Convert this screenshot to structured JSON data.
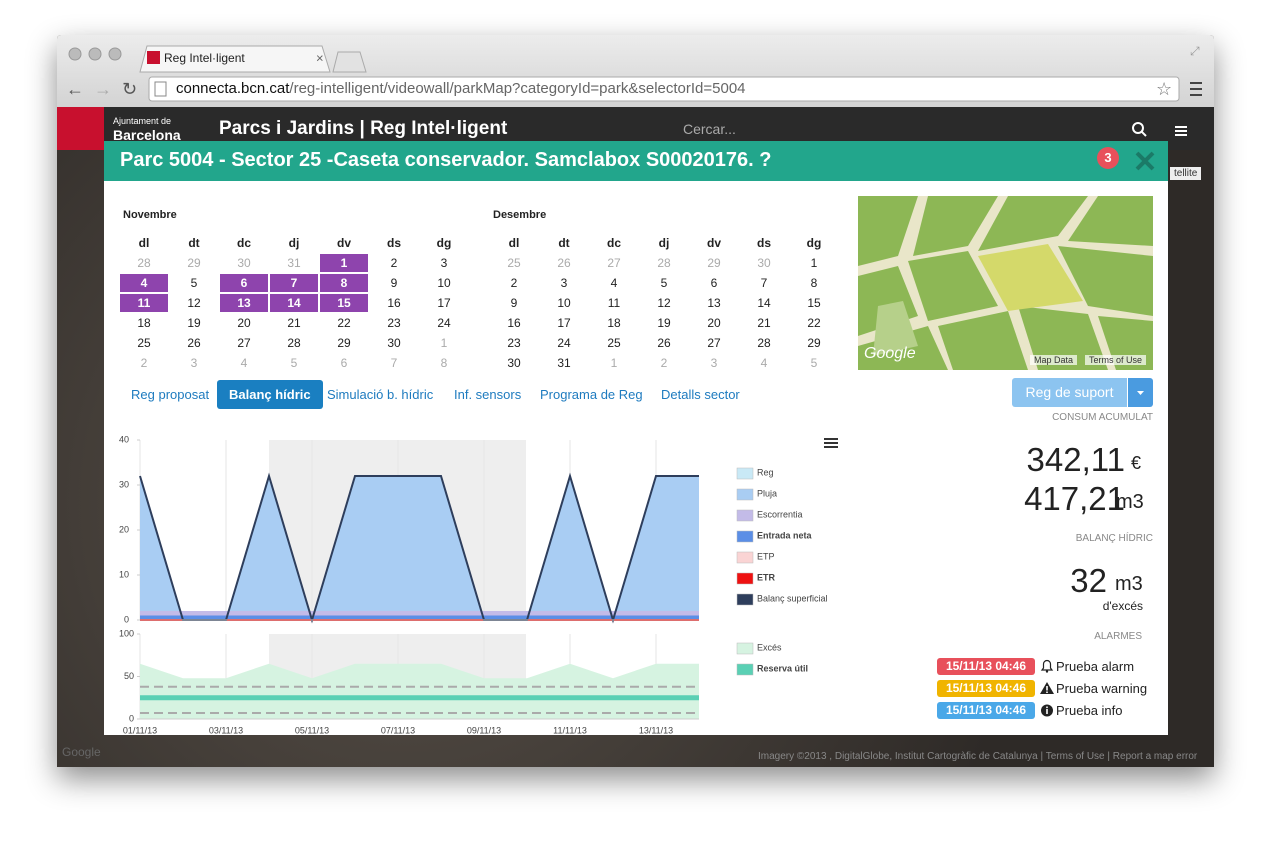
{
  "browser": {
    "tab_title": "Reg Intel·ligent",
    "url_host": "connecta.bcn.cat",
    "url_path": "/reg-intelligent/videowall/parkMap?categoryId=park&selectorId=5004"
  },
  "header": {
    "logo_line1": "Ajuntament de",
    "logo_line2": "Barcelona",
    "title": "Parcs i Jardins | Reg Intel·ligent",
    "search_placeholder": "Cercar..."
  },
  "map_background": {
    "satellite": "tellite",
    "google": "Google",
    "attribution": "Imagery ©2013 , DigitalGlobe, Institut Cartogràfic de Catalunya",
    "terms": "Terms of Use",
    "report": "Report a map error"
  },
  "modal": {
    "title": "Parc 5004 - Sector 25 -Caseta conservador. Samclabox S00020176. ?",
    "badge": "3"
  },
  "calendars": [
    {
      "month": "Novembre",
      "weekdays": [
        "dl",
        "dt",
        "dc",
        "dj",
        "dv",
        "ds",
        "dg"
      ],
      "weeks": [
        [
          28,
          29,
          30,
          31,
          1,
          2,
          3
        ],
        [
          4,
          5,
          6,
          7,
          8,
          9,
          10
        ],
        [
          11,
          12,
          13,
          14,
          15,
          16,
          17
        ],
        [
          18,
          19,
          20,
          21,
          22,
          23,
          24
        ],
        [
          25,
          26,
          27,
          28,
          29,
          30,
          1
        ],
        [
          2,
          3,
          4,
          5,
          6,
          7,
          8
        ]
      ],
      "selected": [
        1,
        4,
        6,
        7,
        8,
        11,
        13,
        14,
        15
      ]
    },
    {
      "month": "Desembre",
      "weekdays": [
        "dl",
        "dt",
        "dc",
        "dj",
        "dv",
        "ds",
        "dg"
      ],
      "weeks": [
        [
          25,
          26,
          27,
          28,
          29,
          30,
          1
        ],
        [
          2,
          3,
          4,
          5,
          6,
          7,
          8
        ],
        [
          9,
          10,
          11,
          12,
          13,
          14,
          15
        ],
        [
          16,
          17,
          18,
          19,
          20,
          21,
          22
        ],
        [
          23,
          24,
          25,
          26,
          27,
          28,
          29
        ],
        [
          30,
          31,
          1,
          2,
          3,
          4,
          5
        ]
      ]
    }
  ],
  "mini_map": {
    "logo": "Google",
    "map_data": "Map Data",
    "terms": "Terms of Use"
  },
  "tabs": {
    "items": [
      "Reg proposat",
      "Balanç hídric",
      "Simulació b. hídric",
      "Inf. sensors",
      "Programa de Reg",
      "Detalls sector"
    ],
    "active": 1
  },
  "support_button": "Reg de suport",
  "summary": {
    "consum_label": "CONSUM ACUMULAT",
    "cost": "342,11",
    "cost_unit": "€",
    "volume": "417,21",
    "volume_unit": "m3",
    "balance_label": "BALANÇ HÍDRIC",
    "balance": "32",
    "balance_unit": "m3",
    "balance_note": "d'excés",
    "alarms_label": "ALARMES"
  },
  "alarms": [
    {
      "time": "15/11/13 04:46",
      "text": "Prueba alarm",
      "color": "#e8505b"
    },
    {
      "time": "15/11/13 04:46",
      "text": "Prueba warning",
      "color": "#f0b400"
    },
    {
      "time": "15/11/13 04:46",
      "text": "Prueba info",
      "color": "#4aa8e8"
    }
  ],
  "chart_data": [
    {
      "type": "area",
      "ylim": [
        0,
        40
      ],
      "yticks": [
        0,
        10,
        20,
        30,
        40
      ],
      "series": [
        {
          "name": "Reg",
          "color": "#c9e9f6",
          "kind": "area",
          "values": [
            0,
            0,
            0,
            0,
            0,
            0,
            0,
            0,
            0,
            0,
            0,
            0,
            0,
            0
          ]
        },
        {
          "name": "Pluja",
          "color": "#a9cdf3",
          "kind": "area",
          "values": [
            32,
            0,
            0,
            32,
            0,
            32,
            32,
            32,
            0,
            0,
            32,
            0,
            32,
            32
          ]
        },
        {
          "name": "Escorrentia",
          "color": "#c3bbe8",
          "kind": "area",
          "values": [
            2,
            2,
            2,
            2,
            2,
            2,
            2,
            2,
            2,
            2,
            2,
            2,
            2,
            2
          ]
        },
        {
          "name": "Entrada neta",
          "color": "#5b8ee6",
          "kind": "area",
          "values": [
            1,
            1,
            1,
            1,
            1,
            1,
            1,
            1,
            1,
            1,
            1,
            1,
            1,
            1
          ]
        },
        {
          "name": "ETP",
          "color": "#fad4d4",
          "kind": "area",
          "values": [
            0,
            0,
            0,
            0,
            0,
            0,
            0,
            0,
            0,
            0,
            0,
            0,
            0,
            0
          ]
        },
        {
          "name": "ETR",
          "color": "#ee1111",
          "kind": "line",
          "values": [
            0,
            0,
            0,
            0,
            0,
            0,
            0,
            0,
            0,
            0,
            0,
            0,
            0,
            0
          ]
        },
        {
          "name": "Balanç superficial",
          "color": "#2e3e5c",
          "kind": "line",
          "values": [
            32,
            0,
            0,
            32,
            0,
            32,
            32,
            32,
            0,
            0,
            32,
            0,
            32,
            32
          ]
        }
      ]
    },
    {
      "type": "area",
      "ylim": [
        0,
        100
      ],
      "yticks": [
        0,
        50,
        100
      ],
      "categories": [
        "01/11/13",
        null,
        "03/11/13",
        null,
        "05/11/13",
        null,
        "07/11/13",
        null,
        "09/11/13",
        null,
        "11/11/13",
        null,
        "13/11/13",
        null
      ],
      "series": [
        {
          "name": "Excés",
          "color": "#d6f3e1",
          "kind": "area",
          "values": [
            65,
            48,
            48,
            65,
            48,
            65,
            65,
            65,
            48,
            48,
            65,
            48,
            65,
            65
          ]
        },
        {
          "name": "Reserva útil",
          "color": "#5ad0b4",
          "kind": "line",
          "values": [
            25,
            25,
            25,
            25,
            25,
            25,
            25,
            25,
            25,
            25,
            25,
            25,
            25,
            25
          ]
        }
      ],
      "reference_lines": [
        38,
        7
      ]
    }
  ]
}
